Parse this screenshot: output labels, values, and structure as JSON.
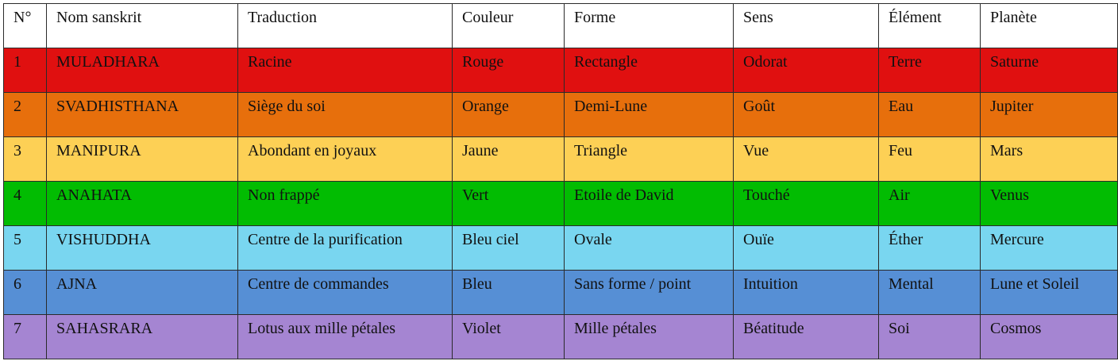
{
  "table": {
    "headers": [
      "N°",
      "Nom sanskrit",
      "Traduction",
      "Couleur",
      "Forme",
      "Sens",
      "Élément",
      "Planète"
    ],
    "rows": [
      {
        "cells": [
          "1",
          "MULADHARA",
          "Racine",
          "Rouge",
          "Rectangle",
          "Odorat",
          "Terre",
          "Saturne"
        ],
        "bg": "#e01010"
      },
      {
        "cells": [
          "2",
          "SVADHISTHANA",
          "Siège du soi",
          "Orange",
          "Demi-Lune",
          "Goût",
          "Eau",
          "Jupiter"
        ],
        "bg": "#e76f0c"
      },
      {
        "cells": [
          "3",
          "MANIPURA",
          "Abondant en joyaux",
          "Jaune",
          "Triangle",
          "Vue",
          "Feu",
          "Mars"
        ],
        "bg": "#fdd055"
      },
      {
        "cells": [
          "4",
          "ANAHATA",
          "Non frappé",
          "Vert",
          "Etoile de David",
          "Touché",
          "Air",
          "Venus"
        ],
        "bg": "#02bc02"
      },
      {
        "cells": [
          "5",
          "VISHUDDHA",
          "Centre de la purification",
          "Bleu ciel",
          "Ovale",
          "Ouïe",
          "Éther",
          "Mercure"
        ],
        "bg": "#79d6f0"
      },
      {
        "cells": [
          "6",
          "AJNA",
          "Centre de commandes",
          "Bleu",
          "Sans forme / point",
          "Intuition",
          "Mental",
          "Lune et Soleil"
        ],
        "bg": "#568fd5"
      },
      {
        "cells": [
          "7",
          "SAHASRARA",
          "Lotus aux mille pétales",
          "Violet",
          "Mille pétales",
          "Béatitude",
          "Soi",
          "Cosmos"
        ],
        "bg": "#a585d2"
      }
    ]
  }
}
